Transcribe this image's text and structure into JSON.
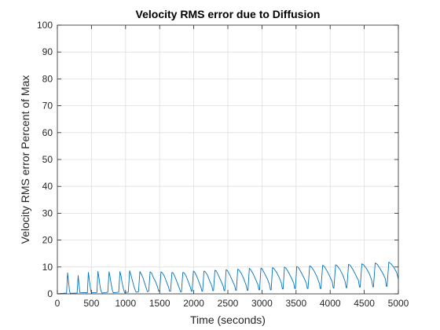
{
  "chart_data": {
    "type": "line",
    "title": "Velocity RMS error due to Diffusion",
    "xlabel": "Time (seconds)",
    "ylabel": "Velocity RMS error Percent of Max",
    "xlim": [
      0,
      5000
    ],
    "ylim": [
      0,
      100
    ],
    "grid": true,
    "legend": "none",
    "xticks": [
      0,
      500,
      1000,
      1500,
      2000,
      2500,
      3000,
      3500,
      4000,
      4500,
      5000
    ],
    "yticks": [
      0,
      10,
      20,
      30,
      40,
      50,
      60,
      70,
      80,
      90,
      100
    ],
    "series": [
      {
        "color": "#0072bd",
        "x": [
          0,
          135,
          150,
          165,
          178,
          190,
          290,
          305,
          318,
          330,
          440,
          455,
          470,
          485,
          498,
          580,
          595,
          610,
          625,
          640,
          655,
          740,
          758,
          772,
          790,
          805,
          820,
          900,
          918,
          935,
          950,
          968,
          985,
          1040,
          1060,
          1078,
          1100,
          1120,
          1140,
          1155,
          1190,
          1210,
          1228,
          1255,
          1280,
          1305,
          1320,
          1340,
          1360,
          1380,
          1410,
          1440,
          1470,
          1485,
          1500,
          1520,
          1540,
          1570,
          1600,
          1630,
          1645,
          1660,
          1680,
          1700,
          1730,
          1760,
          1790,
          1805,
          1820,
          1840,
          1860,
          1890,
          1920,
          1950,
          1965,
          1975,
          1995,
          2015,
          2045,
          2075,
          2105,
          2120,
          2130,
          2150,
          2170,
          2200,
          2230,
          2265,
          2280,
          2290,
          2310,
          2330,
          2360,
          2395,
          2430,
          2445,
          2455,
          2475,
          2495,
          2530,
          2565,
          2600,
          2615,
          2625,
          2645,
          2665,
          2700,
          2735,
          2770,
          2785,
          2795,
          2815,
          2835,
          2870,
          2905,
          2940,
          2955,
          2965,
          2985,
          3005,
          3040,
          3080,
          3110,
          3125,
          3135,
          3155,
          3175,
          3215,
          3255,
          3285,
          3300,
          3310,
          3330,
          3350,
          3390,
          3430,
          3465,
          3480,
          3490,
          3510,
          3535,
          3575,
          3615,
          3650,
          3665,
          3675,
          3700,
          3725,
          3765,
          3805,
          3840,
          3855,
          3865,
          3890,
          3915,
          3955,
          3995,
          4030,
          4045,
          4055,
          4080,
          4105,
          4145,
          4185,
          4220,
          4235,
          4245,
          4270,
          4295,
          4335,
          4375,
          4415,
          4430,
          4440,
          4465,
          4490,
          4530,
          4575,
          4610,
          4625,
          4635,
          4660,
          4690,
          4730,
          4775,
          4810,
          4825,
          4835,
          4860,
          4890,
          4930,
          4975,
          5000
        ],
        "y": [
          0,
          0.3,
          7.8,
          4.5,
          1.0,
          0.2,
          0.3,
          6.8,
          3.5,
          0.5,
          0.4,
          8.0,
          5.0,
          2.0,
          0.4,
          0.5,
          8.4,
          6.0,
          3.0,
          1.0,
          0.3,
          0.6,
          8.2,
          6.5,
          3.5,
          1.5,
          0.4,
          0.6,
          8.3,
          6.5,
          4.0,
          2.0,
          0.5,
          0.6,
          8.6,
          7.0,
          5.0,
          3.0,
          1.5,
          0.6,
          0.8,
          8.3,
          7.5,
          6.0,
          4.0,
          2.0,
          0.8,
          1.0,
          8.2,
          7.8,
          6.0,
          4.5,
          2.5,
          1.0,
          1.0,
          8.2,
          7.8,
          6.5,
          4.5,
          2.5,
          1.0,
          1.0,
          8.0,
          7.7,
          6.0,
          4.0,
          2.0,
          0.8,
          0.8,
          8.0,
          7.8,
          6.5,
          4.5,
          2.5,
          1.0,
          1.0,
          8.5,
          8.0,
          6.5,
          4.5,
          2.5,
          1.0,
          1.0,
          8.5,
          8.2,
          7.0,
          5.0,
          3.0,
          1.2,
          1.2,
          8.8,
          8.5,
          7.0,
          5.0,
          3.0,
          1.2,
          1.2,
          9.0,
          8.6,
          7.0,
          5.0,
          3.0,
          1.3,
          1.3,
          9.2,
          8.8,
          7.5,
          5.5,
          3.0,
          1.3,
          1.3,
          9.5,
          9.0,
          7.5,
          5.5,
          3.5,
          1.5,
          1.5,
          9.6,
          9.2,
          7.5,
          5.5,
          3.5,
          1.5,
          1.5,
          9.8,
          9.4,
          8.0,
          6.0,
          4.0,
          1.8,
          1.8,
          10.0,
          9.6,
          8.0,
          6.0,
          4.0,
          2.0,
          2.0,
          10.2,
          9.8,
          8.0,
          6.0,
          4.0,
          2.0,
          2.0,
          10.4,
          10.0,
          8.5,
          6.5,
          4.0,
          2.0,
          2.0,
          10.6,
          10.2,
          8.5,
          6.5,
          4.5,
          2.2,
          2.2,
          10.8,
          10.4,
          9.0,
          7.0,
          4.5,
          2.3,
          2.3,
          11.0,
          10.6,
          9.0,
          7.0,
          5.0,
          2.5,
          2.5,
          11.2,
          10.8,
          9.5,
          7.5,
          5.0,
          2.6,
          2.6,
          11.5,
          11.0,
          9.5,
          7.5,
          5.5,
          2.8,
          2.8,
          11.8,
          11.2,
          10.0,
          8.0,
          5.5
        ]
      }
    ]
  }
}
